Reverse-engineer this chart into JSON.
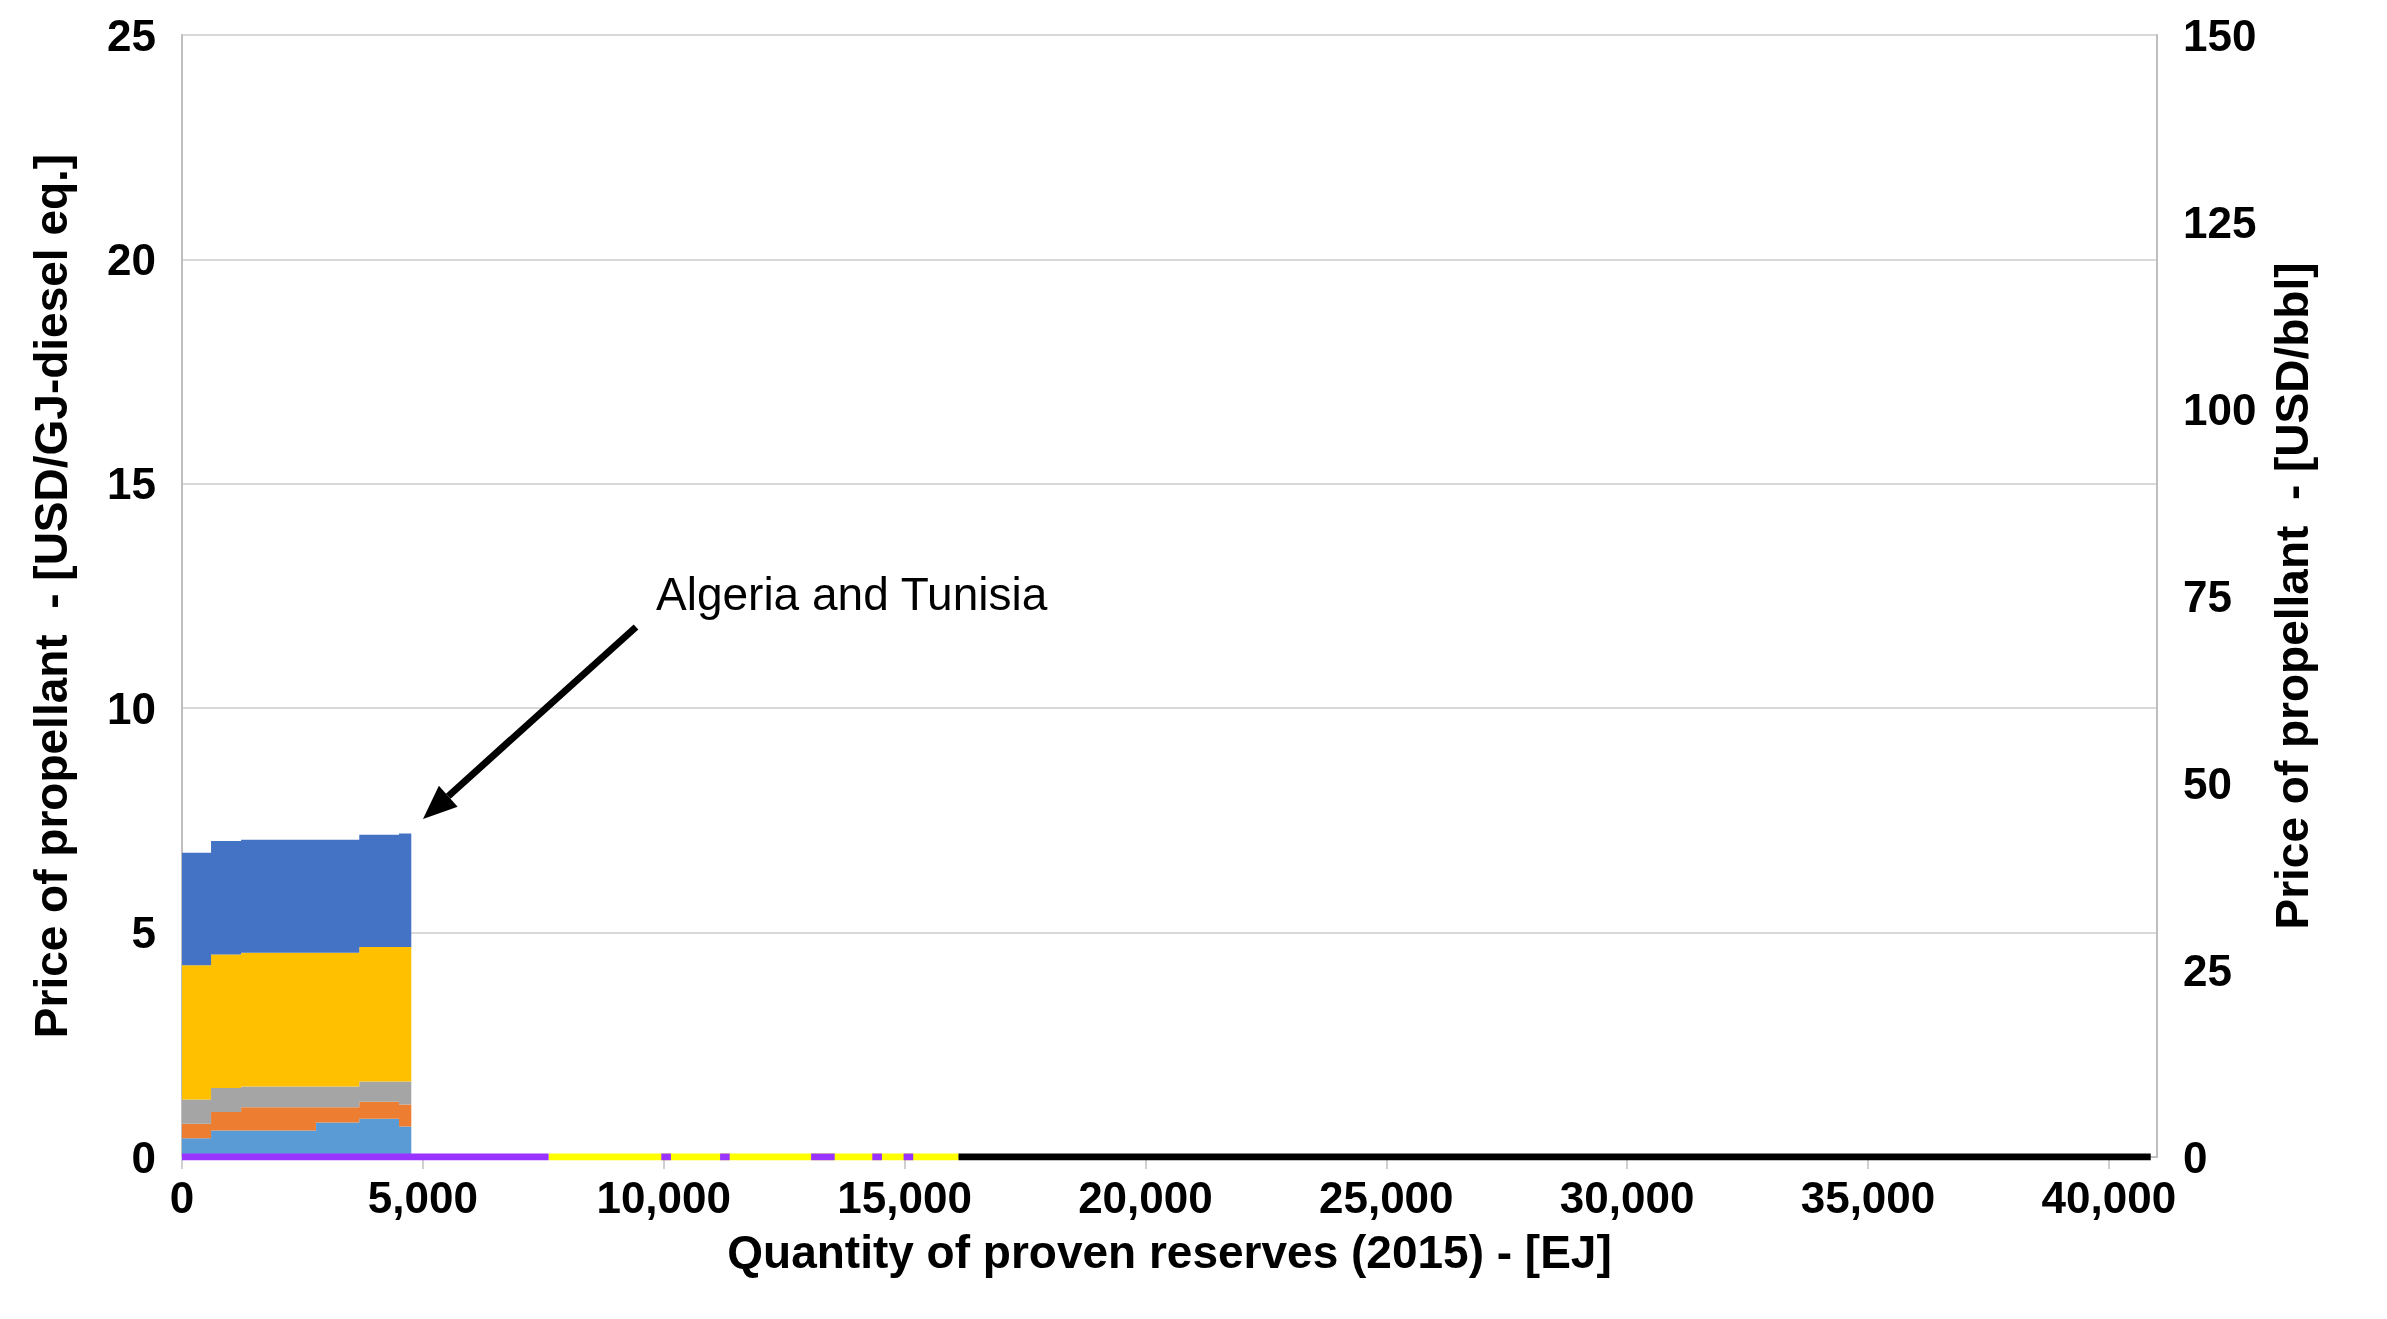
{
  "chart_data": {
    "type": "area",
    "stacked": true,
    "xlabel": "Quantity of proven reserves (2015) - [EJ]",
    "ylabel": "Price of propellant  - [USD/GJ-diesel eq.]",
    "y2label": "Price of propellant  - [USD/bbl]",
    "xlim": [
      0,
      41000
    ],
    "xticks": [
      0,
      {
        "value": 5000,
        "label": "5,000"
      },
      {
        "value": 10000,
        "label": "10,000"
      },
      {
        "value": 15000,
        "label": "15,000"
      },
      {
        "value": 20000,
        "label": "20,000"
      },
      {
        "value": 25000,
        "label": "25,000"
      },
      {
        "value": 30000,
        "label": "30,000"
      },
      {
        "value": 35000,
        "label": "35,000"
      },
      {
        "value": 40000,
        "label": "40,000"
      }
    ],
    "ylim": [
      0,
      25
    ],
    "yticks": [
      0,
      5,
      10,
      15,
      20,
      25
    ],
    "y2lim": [
      0,
      150
    ],
    "y2ticks": [
      0,
      25,
      50,
      75,
      100,
      125,
      150
    ],
    "grid": "y",
    "annotations": [
      "Algeria and Tunisia"
    ],
    "series": [
      {
        "color": "#5b9bd5",
        "x": [
          0,
          603,
          603,
          1227,
          1227,
          2780,
          2780,
          3680,
          3680,
          4505,
          4505,
          4760
        ],
        "values": [
          0.42,
          0.42,
          0.59,
          0.59,
          0.59,
          0.59,
          0.77,
          0.77,
          0.85,
          0.85,
          0.68,
          0.68
        ]
      },
      {
        "color": "#ed7d31",
        "x": [
          0,
          603,
          603,
          1227,
          1227,
          2780,
          2780,
          3680,
          3680,
          4505,
          4505,
          4760
        ],
        "values": [
          0.32,
          0.32,
          0.41,
          0.41,
          0.52,
          0.52,
          0.34,
          0.34,
          0.38,
          0.38,
          0.49,
          0.49
        ]
      },
      {
        "color": "#a5a5a5",
        "x": [
          0,
          603,
          603,
          1227,
          1227,
          2780,
          2780,
          3680,
          3680,
          4505,
          4505,
          4760
        ],
        "values": [
          0.54,
          0.54,
          0.54,
          0.54,
          0.46,
          0.46,
          0.46,
          0.46,
          0.45,
          0.45,
          0.51,
          0.51
        ]
      },
      {
        "color": "#ffc000",
        "x": [
          0,
          603,
          603,
          1227,
          1227,
          2780,
          2780,
          3680,
          3680,
          4505,
          4505,
          4760
        ],
        "values": [
          2.99,
          2.99,
          2.97,
          2.97,
          2.98,
          2.98,
          2.98,
          2.98,
          3.0,
          3.0,
          3.0,
          3.0
        ]
      },
      {
        "color": "#4472c4",
        "x": [
          0,
          603,
          603,
          1227,
          1227,
          2780,
          2780,
          3680,
          3680,
          4505,
          4505,
          4760
        ],
        "values": [
          2.51,
          2.51,
          2.53,
          2.53,
          2.52,
          2.52,
          2.52,
          2.52,
          2.5,
          2.5,
          2.53,
          2.53
        ]
      },
      {
        "type": "line",
        "color": "#ffff00",
        "x": [
          7610,
          16120
        ],
        "values": [
          0,
          0
        ]
      },
      {
        "type": "line",
        "color": "#9933ff",
        "x": [
          0,
          7610,
          7800,
          9950,
          10150,
          10500,
          11170,
          11370,
          12000,
          13060,
          13550,
          14000,
          14330,
          14530,
          14750,
          14980,
          15180
        ],
        "values": [
          0,
          0,
          null,
          0,
          0,
          null,
          0,
          0,
          null,
          0,
          0,
          null,
          0,
          0,
          null,
          0,
          0
        ]
      },
      {
        "type": "line",
        "color": "#000000",
        "x": [
          16120,
          40870
        ],
        "values": [
          0,
          0
        ]
      }
    ]
  }
}
